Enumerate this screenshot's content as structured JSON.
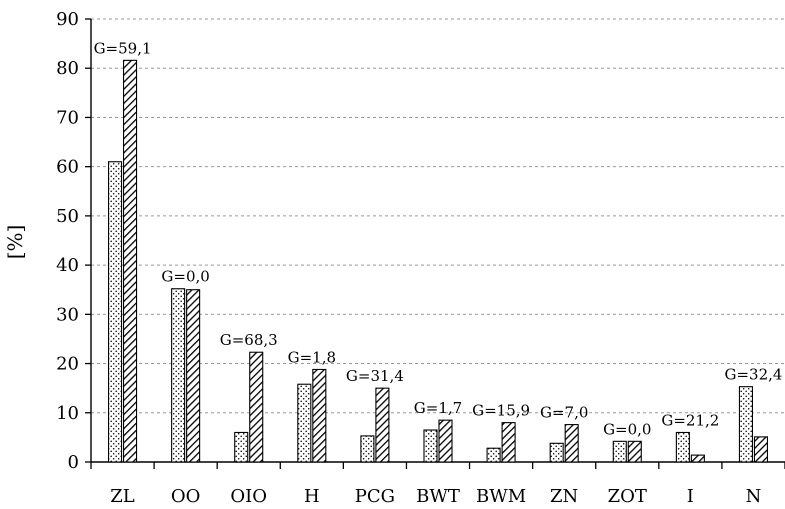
{
  "chart_data": {
    "type": "bar",
    "title": "",
    "xlabel": "",
    "ylabel": "[%]",
    "ylim": [
      0,
      90
    ],
    "yticks": [
      "0",
      "10",
      "20",
      "30",
      "40",
      "50",
      "60",
      "70",
      "80",
      "90"
    ],
    "grid": "horizontal dashed",
    "categories": [
      "ZL",
      "OO",
      "OIO",
      "H",
      "PCG",
      "BWT",
      "BWM",
      "ZN",
      "ZOT",
      "I",
      "N"
    ],
    "series": [
      {
        "pattern": "dotted",
        "values": [
          61.0,
          35.2,
          6.0,
          15.8,
          5.3,
          6.5,
          2.8,
          3.8,
          4.2,
          6.0,
          15.3
        ]
      },
      {
        "pattern": "hatched",
        "values": [
          81.6,
          35.0,
          22.3,
          18.8,
          15.0,
          8.5,
          8.0,
          7.6,
          4.2,
          1.4,
          5.1
        ]
      }
    ],
    "annotations": [
      "G=59,1",
      "G=0,0",
      "G=68,3",
      "G=1,8",
      "G=31,4",
      "G=1,7",
      "G=15,9",
      "G=7,0",
      "G=0,0",
      "G=21,2",
      "G=32,4"
    ],
    "colors": {
      "bar_fill": "#ffffff",
      "stroke": "#000000",
      "grid": "#999999"
    }
  }
}
